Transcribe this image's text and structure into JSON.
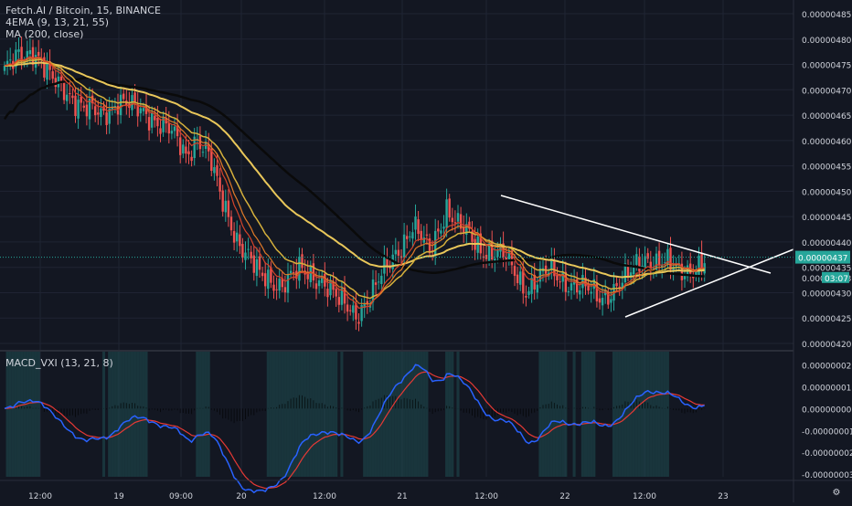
{
  "legend": {
    "symbol": "Fetch.AI / Bitcoin, 15, BINANCE",
    "ema": "4EMA (9, 13, 21, 55)",
    "ma": "MA (200, close)",
    "macd": "MACD_VXI (13, 21, 8)"
  },
  "colors": {
    "background": "#131722",
    "grid": "#1f2433",
    "up": "#26a69a",
    "down": "#ef5350",
    "ema_fast": "#d4432a",
    "ema_mid": "#e07a28",
    "ema_slow": "#d6b13c",
    "ema_long": "#e9c75a",
    "ma200": "#0a0a0a",
    "trendline": "#ffffff",
    "macd_line": "#2962ff",
    "signal_line": "#e53935",
    "macd_band": "#1f4f52",
    "price_label": "#1e90ff"
  },
  "chart_data": [
    {
      "type": "candlestick",
      "x_tick_labels": [
        "12:00",
        "19",
        "09:00",
        "20",
        "12:00",
        "21",
        "12:00",
        "22",
        "12:00",
        "23"
      ],
      "y_tick_labels": [
        "0.00000485",
        "0.00000480",
        "0.00000475",
        "0.00000470",
        "0.00000465",
        "0.00000460",
        "0.00000455",
        "0.00000450",
        "0.00000445",
        "0.00000440",
        "0.00000435",
        "0.00000430",
        "0.00000425",
        "0.00000420"
      ],
      "ylim": [
        4.2e-06,
        4.85e-06
      ],
      "last_price_label": "0.00000437",
      "countdown_label": "03:07",
      "prev_price_label": "0.00000433",
      "close_anchors": [
        [
          0,
          473
        ],
        [
          5,
          477
        ],
        [
          10,
          478
        ],
        [
          16,
          472
        ],
        [
          22,
          470
        ],
        [
          28,
          466
        ],
        [
          34,
          465
        ],
        [
          40,
          468
        ],
        [
          46,
          466
        ],
        [
          52,
          465
        ],
        [
          58,
          462
        ],
        [
          64,
          457
        ],
        [
          68,
          461
        ],
        [
          72,
          457
        ],
        [
          76,
          449
        ],
        [
          82,
          441
        ],
        [
          90,
          433
        ],
        [
          98,
          432
        ],
        [
          104,
          434
        ],
        [
          112,
          433
        ],
        [
          118,
          428
        ],
        [
          124,
          426
        ],
        [
          130,
          430
        ],
        [
          138,
          438
        ],
        [
          144,
          443
        ],
        [
          150,
          438
        ],
        [
          156,
          447
        ],
        [
          160,
          443
        ],
        [
          168,
          439
        ],
        [
          176,
          437
        ],
        [
          184,
          431
        ],
        [
          192,
          434
        ],
        [
          200,
          432
        ],
        [
          210,
          429
        ],
        [
          220,
          433
        ],
        [
          226,
          437
        ],
        [
          232,
          436
        ],
        [
          238,
          434
        ],
        [
          247,
          436
        ]
      ],
      "candle_count": 248
    },
    {
      "type": "line",
      "name": "MACD_VXI (13, 21, 8)",
      "y_tick_labels": [
        "0.00000002",
        "0.00000001",
        "0.00000000",
        "-0.00000001",
        "-0.00000002",
        "-0.00000003"
      ],
      "ylim": [
        -3.2e-08,
        2.1e-08
      ]
    }
  ]
}
